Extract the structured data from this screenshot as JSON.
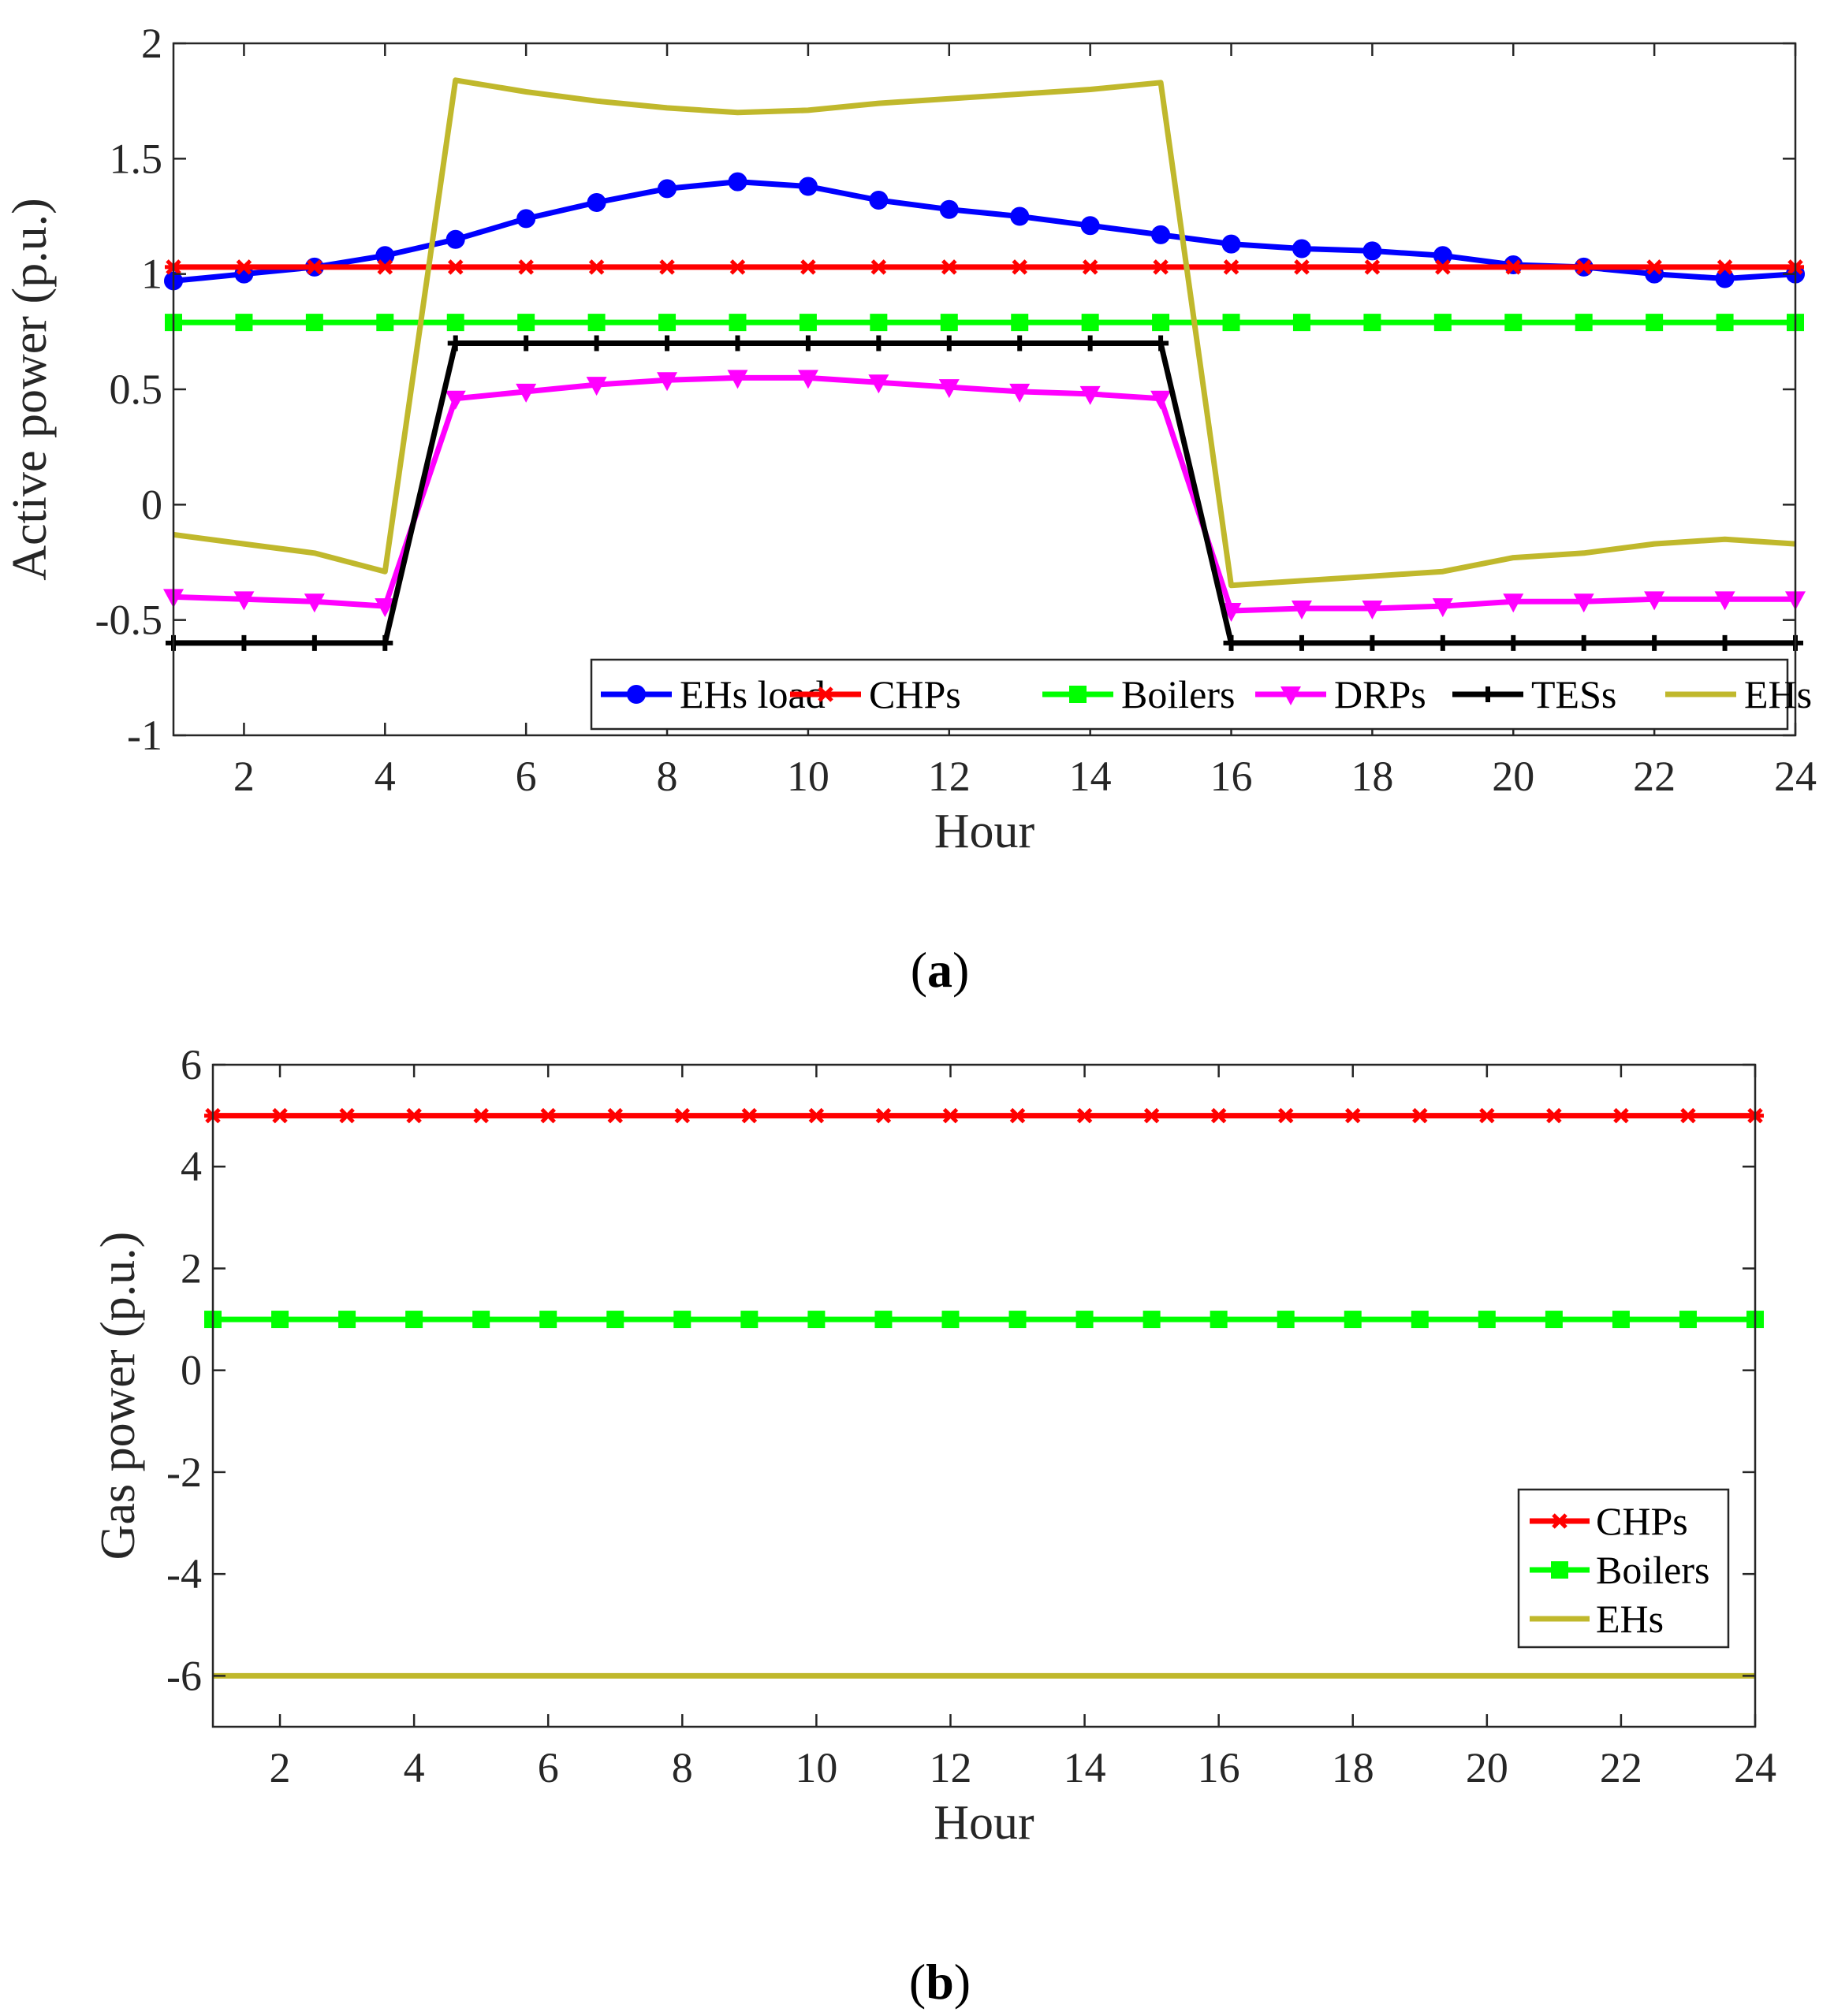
{
  "chart_data": [
    {
      "type": "line",
      "caption": "a",
      "xlabel": "Hour",
      "ylabel": "Active power (p.u.)",
      "xlim": [
        1,
        24
      ],
      "ylim": [
        -1,
        2
      ],
      "xticks": [
        2,
        4,
        6,
        8,
        10,
        12,
        14,
        16,
        18,
        20,
        22,
        24
      ],
      "yticks": [
        -1,
        -0.5,
        0,
        0.5,
        1,
        1.5,
        2
      ],
      "x": [
        1,
        2,
        3,
        4,
        5,
        6,
        7,
        8,
        9,
        10,
        11,
        12,
        13,
        14,
        15,
        16,
        17,
        18,
        19,
        20,
        21,
        22,
        23,
        24
      ],
      "legend_location": "bottom-right",
      "legend_orientation": "horizontal",
      "series": [
        {
          "name": "EHs load",
          "color": "#0000ff",
          "marker": "circle",
          "values": [
            0.97,
            1.0,
            1.03,
            1.08,
            1.15,
            1.24,
            1.31,
            1.37,
            1.4,
            1.38,
            1.32,
            1.28,
            1.25,
            1.21,
            1.17,
            1.13,
            1.11,
            1.1,
            1.08,
            1.04,
            1.03,
            1.0,
            0.98,
            1.0
          ]
        },
        {
          "name": "CHPs",
          "color": "#ff0000",
          "marker": "star",
          "values": [
            1.03,
            1.03,
            1.03,
            1.03,
            1.03,
            1.03,
            1.03,
            1.03,
            1.03,
            1.03,
            1.03,
            1.03,
            1.03,
            1.03,
            1.03,
            1.03,
            1.03,
            1.03,
            1.03,
            1.03,
            1.03,
            1.03,
            1.03,
            1.03
          ]
        },
        {
          "name": "Boilers",
          "color": "#00ff00",
          "marker": "square",
          "values": [
            0.79,
            0.79,
            0.79,
            0.79,
            0.79,
            0.79,
            0.79,
            0.79,
            0.79,
            0.79,
            0.79,
            0.79,
            0.79,
            0.79,
            0.79,
            0.79,
            0.79,
            0.79,
            0.79,
            0.79,
            0.79,
            0.79,
            0.79,
            0.79
          ]
        },
        {
          "name": "DRPs",
          "color": "#ff00ff",
          "marker": "triangle-down",
          "values": [
            -0.4,
            -0.41,
            -0.42,
            -0.44,
            0.46,
            0.49,
            0.52,
            0.54,
            0.55,
            0.55,
            0.53,
            0.51,
            0.49,
            0.48,
            0.46,
            -0.46,
            -0.45,
            -0.45,
            -0.44,
            -0.42,
            -0.42,
            -0.41,
            -0.41,
            -0.41
          ]
        },
        {
          "name": "TESs",
          "color": "#000000",
          "marker": "plus",
          "values": [
            -0.6,
            -0.6,
            -0.6,
            -0.6,
            0.7,
            0.7,
            0.7,
            0.7,
            0.7,
            0.7,
            0.7,
            0.7,
            0.7,
            0.7,
            0.7,
            -0.6,
            -0.6,
            -0.6,
            -0.6,
            -0.6,
            -0.6,
            -0.6,
            -0.6,
            -0.6
          ]
        },
        {
          "name": "EHs",
          "color": "#c0b82c",
          "marker": "none",
          "values": [
            -0.13,
            -0.17,
            -0.21,
            -0.29,
            1.84,
            1.79,
            1.75,
            1.72,
            1.7,
            1.71,
            1.74,
            1.76,
            1.78,
            1.8,
            1.83,
            -0.35,
            -0.33,
            -0.31,
            -0.29,
            -0.23,
            -0.21,
            -0.17,
            -0.15,
            -0.17
          ]
        }
      ]
    },
    {
      "type": "line",
      "caption": "b",
      "xlabel": "Hour",
      "ylabel": "Gas power (p.u.)",
      "xlim": [
        1,
        24
      ],
      "ylim": [
        -7,
        6
      ],
      "xticks": [
        2,
        4,
        6,
        8,
        10,
        12,
        14,
        16,
        18,
        20,
        22,
        24
      ],
      "yticks": [
        -6,
        -4,
        -2,
        0,
        2,
        4,
        6
      ],
      "x": [
        1,
        2,
        3,
        4,
        5,
        6,
        7,
        8,
        9,
        10,
        11,
        12,
        13,
        14,
        15,
        16,
        17,
        18,
        19,
        20,
        21,
        22,
        23,
        24
      ],
      "legend_location": "bottom-right",
      "legend_orientation": "vertical",
      "series": [
        {
          "name": "CHPs",
          "color": "#ff0000",
          "marker": "star",
          "values": [
            5,
            5,
            5,
            5,
            5,
            5,
            5,
            5,
            5,
            5,
            5,
            5,
            5,
            5,
            5,
            5,
            5,
            5,
            5,
            5,
            5,
            5,
            5,
            5
          ]
        },
        {
          "name": "Boilers",
          "color": "#00ff00",
          "marker": "square",
          "values": [
            1,
            1,
            1,
            1,
            1,
            1,
            1,
            1,
            1,
            1,
            1,
            1,
            1,
            1,
            1,
            1,
            1,
            1,
            1,
            1,
            1,
            1,
            1,
            1
          ]
        },
        {
          "name": "EHs",
          "color": "#c0b82c",
          "marker": "none",
          "values": [
            -6,
            -6,
            -6,
            -6,
            -6,
            -6,
            -6,
            -6,
            -6,
            -6,
            -6,
            -6,
            -6,
            -6,
            -6,
            -6,
            -6,
            -6,
            -6,
            -6,
            -6,
            -6,
            -6,
            -6
          ]
        }
      ]
    }
  ]
}
